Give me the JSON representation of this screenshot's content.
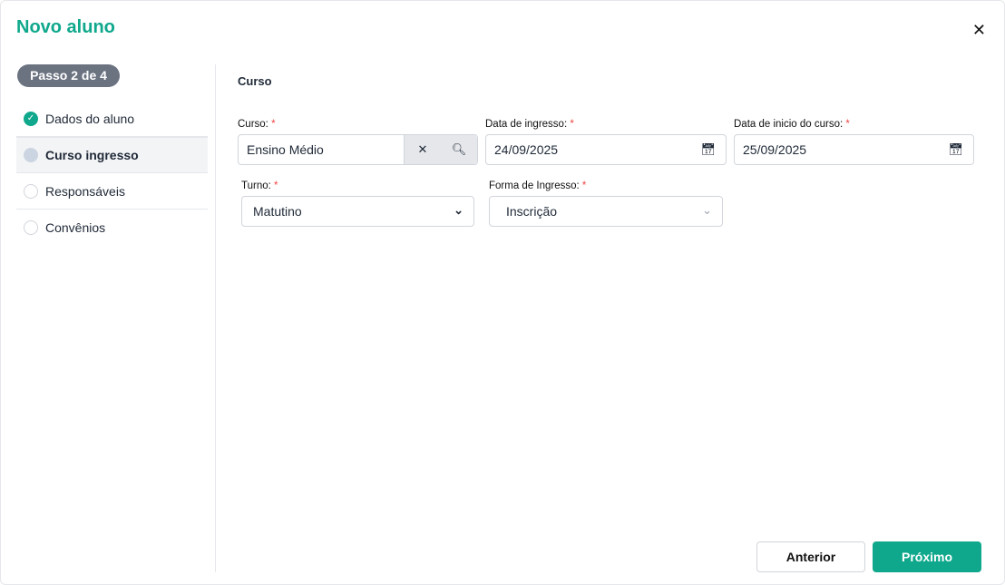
{
  "title": "Novo aluno",
  "step_badge": "Passo 2 de 4",
  "sidebar": {
    "items": [
      {
        "label": "Dados do aluno",
        "status": "done"
      },
      {
        "label": "Curso ingresso",
        "status": "current"
      },
      {
        "label": "Responsáveis",
        "status": "pending"
      },
      {
        "label": "Convênios",
        "status": "pending"
      }
    ]
  },
  "section_title": "Curso",
  "fields": {
    "curso": {
      "label": "Curso:",
      "value": "Ensino Médio"
    },
    "data_ingresso": {
      "label": "Data de ingresso:",
      "value": "24/09/2025"
    },
    "data_inicio": {
      "label": "Data de inicio do curso:",
      "value": "25/09/2025"
    },
    "turno": {
      "label": "Turno:",
      "value": "Matutino"
    },
    "forma_ingresso": {
      "label": "Forma de Ingresso:",
      "value": "Inscrição"
    }
  },
  "required_mark": "*",
  "footer": {
    "prev": "Anterior",
    "next": "Próximo"
  },
  "colors": {
    "accent": "#0fa88c",
    "required": "#ef4444"
  }
}
